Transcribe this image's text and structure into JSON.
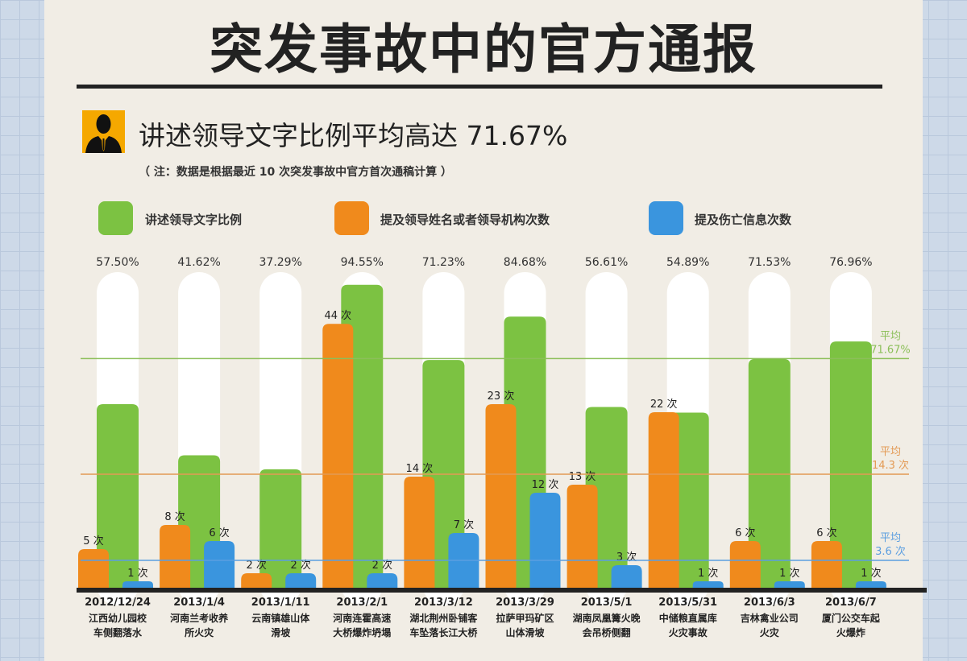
{
  "title": "突发事故中的官方通报",
  "subtitle": "讲述领导文字比例平均高达 71.67%",
  "note": "（ 注：数据是根据最近 10 次突发事故中官方首次通稿计算 ）",
  "icon": "businessman-silhouette-icon",
  "colors": {
    "green": "#7cc242",
    "orange": "#f08a1c",
    "blue": "#3a95de",
    "capsule": "#ffffff"
  },
  "chart_data": {
    "type": "bar",
    "categories": [
      {
        "date": "2012/12/24",
        "line1": "江西幼儿园校",
        "line2": "车侧翻落水"
      },
      {
        "date": "2013/1/4",
        "line1": "河南兰考收养",
        "line2": "所火灾"
      },
      {
        "date": "2013/1/11",
        "line1": "云南镇雄山体",
        "line2": "滑坡"
      },
      {
        "date": "2013/2/1",
        "line1": "河南连霍高速",
        "line2": "大桥爆炸坍塌"
      },
      {
        "date": "2013/3/12",
        "line1": "湖北荆州卧铺客",
        "line2": "车坠落长江大桥"
      },
      {
        "date": "2013/3/29",
        "line1": "拉萨甲玛矿区",
        "line2": "山体滑坡"
      },
      {
        "date": "2013/5/1",
        "line1": "湖南凤凰篝火晚",
        "line2": "会吊桥侧翻"
      },
      {
        "date": "2013/5/31",
        "line1": "中储粮直属库",
        "line2": "火灾事故"
      },
      {
        "date": "2013/6/3",
        "line1": "吉林禽业公司",
        "line2": "火灾"
      },
      {
        "date": "2013/6/7",
        "line1": "厦门公交车起",
        "line2": "火爆炸"
      }
    ],
    "series": [
      {
        "name": "讲述领导文字比例",
        "color": "#7cc242",
        "unit": "%",
        "values": [
          57.5,
          41.62,
          37.29,
          94.55,
          71.23,
          84.68,
          56.61,
          54.89,
          71.53,
          76.96
        ],
        "labels": [
          "57.50%",
          "41.62%",
          "37.29%",
          "94.55%",
          "71.23%",
          "84.68%",
          "56.61%",
          "54.89%",
          "71.53%",
          "76.96%"
        ],
        "average": 71.67,
        "average_label": [
          "平均",
          "71.67%"
        ]
      },
      {
        "name": "提及领导姓名或者领导机构次数",
        "color": "#f08a1c",
        "unit": "次",
        "values": [
          5,
          8,
          2,
          44,
          14,
          23,
          13,
          22,
          6,
          6
        ],
        "labels": [
          "5 次",
          "8 次",
          "2 次",
          "44 次",
          "14 次",
          "23 次",
          "13 次",
          "22 次",
          "6 次",
          "6 次"
        ],
        "average": 14.3,
        "average_label": [
          "平均",
          "14.3 次"
        ]
      },
      {
        "name": "提及伤亡信息次数",
        "color": "#3a95de",
        "unit": "次",
        "values": [
          1,
          6,
          2,
          2,
          7,
          12,
          3,
          1,
          1,
          1
        ],
        "labels": [
          "1 次",
          "6 次",
          "2 次",
          "2 次",
          "7 次",
          "12 次",
          "3 次",
          "1 次",
          "1 次",
          "1 次"
        ],
        "average": 3.6,
        "average_label": [
          "平均",
          "3.6 次"
        ]
      }
    ],
    "ylim_percent": [
      0,
      100
    ],
    "legend": "top",
    "grid": false
  }
}
